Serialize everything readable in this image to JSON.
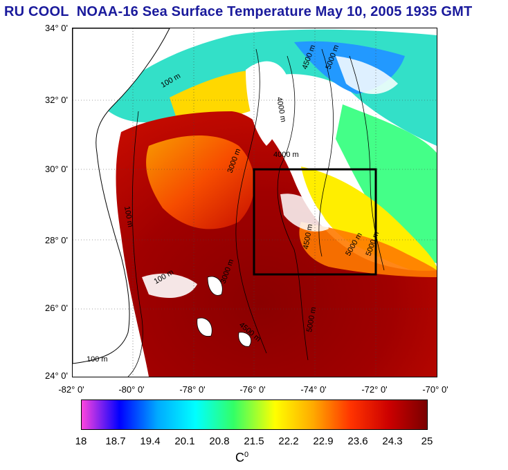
{
  "title": "RU COOL  NOAA-16 Sea Surface Temperature May 10, 2005 1935 GMT",
  "map": {
    "lat_labels": [
      "34° 0'",
      "32° 0'",
      "30° 0'",
      "28° 0'",
      "26° 0'",
      "24° 0'"
    ],
    "lon_labels": [
      "-82° 0'",
      "-80° 0'",
      "-78° 0'",
      "-76° 0'",
      "-74° 0'",
      "-72° 0'",
      "-70° 0'"
    ],
    "depth_labels": [
      "100 m",
      "100 m",
      "100 m",
      "100 m",
      "3000 m",
      "3000 m",
      "4000 m",
      "4000 m",
      "4500 m",
      "4500 m",
      "5000 m",
      "5000 m",
      "5000 m",
      "4500 m",
      "5000 m"
    ],
    "region_box": {
      "lon_min": -76,
      "lon_max": -72,
      "lat_min": 27,
      "lat_max": 30
    },
    "extent": {
      "lon_min": -82,
      "lon_max": -70,
      "lat_min": 24,
      "lat_max": 34
    }
  },
  "colorbar": {
    "tick_labels": [
      "18",
      "18.7",
      "19.4",
      "20.1",
      "20.8",
      "21.5",
      "22.2",
      "22.9",
      "23.6",
      "24.3",
      "25"
    ],
    "unit_base": "C",
    "unit_sup": "0",
    "colors": [
      "#ff44dd",
      "#0000ff",
      "#00aaff",
      "#00ffff",
      "#33ff66",
      "#ffff00",
      "#ffaa00",
      "#ff3300",
      "#cc0000",
      "#7a0000"
    ]
  }
}
